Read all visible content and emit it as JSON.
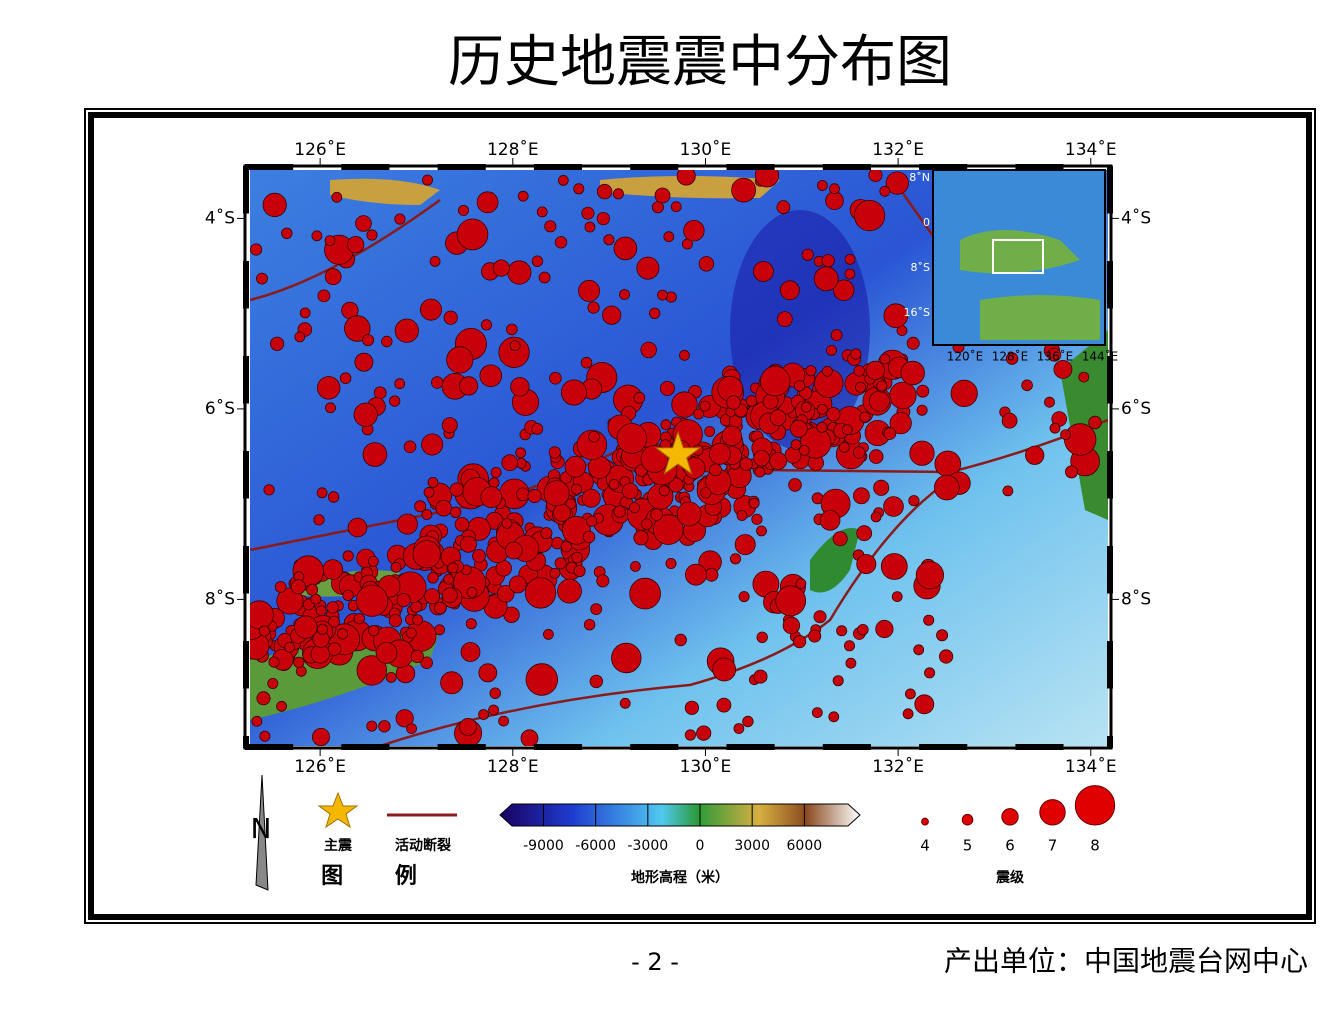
{
  "title": "历史地震震中分布图",
  "map": {
    "lonlim": [
      125.22,
      134.21
    ],
    "latlim": [
      -3.45,
      -9.56
    ],
    "lonticks": [
      {
        "value": 126,
        "label": "126˚E"
      },
      {
        "value": 128,
        "label": "128˚E"
      },
      {
        "value": 130,
        "label": "130˚E"
      },
      {
        "value": 132,
        "label": "132˚E"
      },
      {
        "value": 134,
        "label": "134˚E"
      }
    ],
    "latticks": [
      {
        "value": -4,
        "label": "4˚S"
      },
      {
        "value": -6,
        "label": "6˚S"
      },
      {
        "value": -8,
        "label": "8˚S"
      }
    ],
    "inset": {
      "lat_labels": [
        "8˚N",
        "0",
        "8˚S",
        "16˚S"
      ],
      "lon_labels": [
        "120˚E",
        "128˚E",
        "136˚E",
        "144˚E"
      ]
    }
  },
  "legend": {
    "north": "N",
    "mainshock": "主震",
    "fault": "活动断裂",
    "title": "图 例"
  },
  "colorbar": {
    "title": "地形高程（米）",
    "lim": [
      -11500,
      9200
    ],
    "ticks": [
      -9000,
      -6000,
      -3000,
      0,
      3000,
      6000
    ]
  },
  "magnitude": {
    "title": "震级",
    "values": [
      4,
      5,
      6,
      7,
      8
    ]
  },
  "footer": {
    "page": "- 2 -",
    "source": "产出单位：中国地震台网中心"
  }
}
